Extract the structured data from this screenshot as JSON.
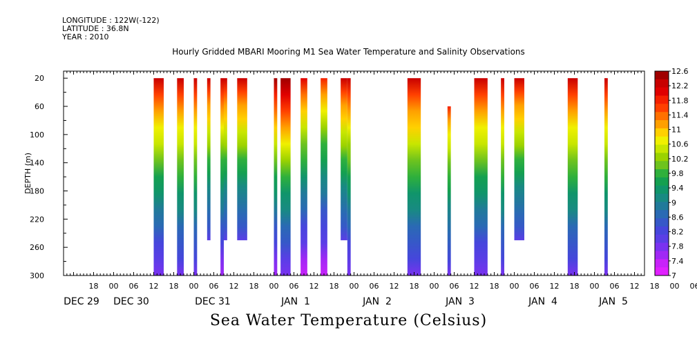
{
  "header": {
    "longitude": "LONGITUDE : 122W(-122)",
    "latitude": "LATITUDE : 36.8N",
    "year": "YEAR : 2010"
  },
  "chart_data": {
    "type": "heatmap",
    "title": "Hourly Gridded MBARI Mooring M1 Sea Water Temperature and Salinity Observations",
    "xlabel": "Sea Water Temperature (Celsius)",
    "ylabel": "DEPTH (m)",
    "ylim": [
      300,
      10
    ],
    "y_ticks": [
      20,
      60,
      100,
      140,
      180,
      220,
      260,
      300
    ],
    "x_axis": {
      "start": "2009-12-29T09:00",
      "end": "2010-01-05T15:00",
      "hour_tick_labels": [
        "18",
        "00",
        "06",
        "12",
        "18",
        "00",
        "06",
        "12",
        "18",
        "00",
        "06",
        "12",
        "18",
        "00",
        "06",
        "12",
        "18",
        "00",
        "06",
        "12",
        "18",
        "00",
        "06",
        "12",
        "18",
        "00",
        "06",
        "12",
        "18",
        "00",
        "06",
        "12"
      ],
      "day_labels": [
        "DEC 29",
        "DEC 30",
        "DEC 31",
        "JAN  1",
        "JAN  2",
        "JAN  3",
        "JAN  4",
        "JAN  5"
      ]
    },
    "colorbar": {
      "labels": [
        "12.6",
        "12.2",
        "11.8",
        "11.4",
        "11",
        "10.6",
        "10.2",
        "9.8",
        "9.4",
        "9",
        "8.6",
        "8.2",
        "7.8",
        "7.4",
        "7"
      ],
      "colors": [
        "#a00000",
        "#c80000",
        "#e00000",
        "#f52000",
        "#ff4000",
        "#ff7000",
        "#ffa000",
        "#ffd000",
        "#f0f000",
        "#c8e600",
        "#9bd200",
        "#6ec31e",
        "#2fb03c",
        "#14a050",
        "#10956a",
        "#188a82",
        "#217a9a",
        "#2a6ab4",
        "#3658c8",
        "#4646dc",
        "#5a3ee6",
        "#7a32f0",
        "#a028f5",
        "#c822fa",
        "#e020ff"
      ],
      "levels": [
        12.6,
        7.0
      ]
    },
    "data_segments": [
      {
        "start": "2009-12-30T12:00",
        "end": "2009-12-30T15:00",
        "top_depth": 20,
        "bottom_depth": 300,
        "temp_top": 12.4,
        "temp_bottom": 7.6
      },
      {
        "start": "2009-12-30T19:00",
        "end": "2009-12-30T21:00",
        "top_depth": 20,
        "bottom_depth": 300,
        "temp_top": 12.3,
        "temp_bottom": 7.8
      },
      {
        "start": "2009-12-31T00:00",
        "end": "2009-12-31T01:00",
        "top_depth": 20,
        "bottom_depth": 300,
        "temp_top": 12.3,
        "temp_bottom": 7.8
      },
      {
        "start": "2009-12-31T04:00",
        "end": "2009-12-31T05:00",
        "top_depth": 20,
        "bottom_depth": 250,
        "temp_top": 12.3,
        "temp_bottom": 8.0
      },
      {
        "start": "2009-12-31T08:00",
        "end": "2009-12-31T09:00",
        "top_depth": 20,
        "bottom_depth": 300,
        "temp_top": 12.3,
        "temp_bottom": 7.4
      },
      {
        "start": "2009-12-31T09:00",
        "end": "2009-12-31T10:00",
        "top_depth": 20,
        "bottom_depth": 250,
        "temp_top": 12.3,
        "temp_bottom": 8.0
      },
      {
        "start": "2009-12-31T13:00",
        "end": "2009-12-31T16:00",
        "top_depth": 20,
        "bottom_depth": 250,
        "temp_top": 12.3,
        "temp_bottom": 8.0
      },
      {
        "start": "2010-01-01T00:00",
        "end": "2010-01-01T01:00",
        "top_depth": 20,
        "bottom_depth": 300,
        "temp_top": 12.6,
        "temp_bottom": 7.4
      },
      {
        "start": "2010-01-01T02:00",
        "end": "2010-01-01T05:00",
        "top_depth": 20,
        "bottom_depth": 300,
        "temp_top": 12.8,
        "temp_bottom": 7.6
      },
      {
        "start": "2010-01-01T08:00",
        "end": "2010-01-01T10:00",
        "top_depth": 20,
        "bottom_depth": 300,
        "temp_top": 12.2,
        "temp_bottom": 7.2
      },
      {
        "start": "2010-01-01T14:00",
        "end": "2010-01-01T16:00",
        "top_depth": 20,
        "bottom_depth": 300,
        "temp_top": 11.8,
        "temp_bottom": 7.2
      },
      {
        "start": "2010-01-01T20:00",
        "end": "2010-01-01T22:00",
        "top_depth": 20,
        "bottom_depth": 250,
        "temp_top": 12.3,
        "temp_bottom": 8.0
      },
      {
        "start": "2010-01-01T22:00",
        "end": "2010-01-01T23:00",
        "top_depth": 20,
        "bottom_depth": 300,
        "temp_top": 12.3,
        "temp_bottom": 7.6
      },
      {
        "start": "2010-01-02T16:00",
        "end": "2010-01-02T20:00",
        "top_depth": 20,
        "bottom_depth": 300,
        "temp_top": 12.4,
        "temp_bottom": 7.8
      },
      {
        "start": "2010-01-03T04:00",
        "end": "2010-01-03T05:00",
        "top_depth": 60,
        "bottom_depth": 300,
        "temp_top": 11.8,
        "temp_bottom": 7.8
      },
      {
        "start": "2010-01-03T12:00",
        "end": "2010-01-03T16:00",
        "top_depth": 20,
        "bottom_depth": 300,
        "temp_top": 12.4,
        "temp_bottom": 7.6
      },
      {
        "start": "2010-01-03T20:00",
        "end": "2010-01-03T21:00",
        "top_depth": 20,
        "bottom_depth": 300,
        "temp_top": 12.3,
        "temp_bottom": 7.8
      },
      {
        "start": "2010-01-04T00:00",
        "end": "2010-01-04T03:00",
        "top_depth": 20,
        "bottom_depth": 250,
        "temp_top": 12.3,
        "temp_bottom": 8.0
      },
      {
        "start": "2010-01-04T16:00",
        "end": "2010-01-04T19:00",
        "top_depth": 20,
        "bottom_depth": 300,
        "temp_top": 12.3,
        "temp_bottom": 7.8
      },
      {
        "start": "2010-01-05T03:00",
        "end": "2010-01-05T04:00",
        "top_depth": 20,
        "bottom_depth": 300,
        "temp_top": 12.3,
        "temp_bottom": 7.8
      }
    ]
  }
}
